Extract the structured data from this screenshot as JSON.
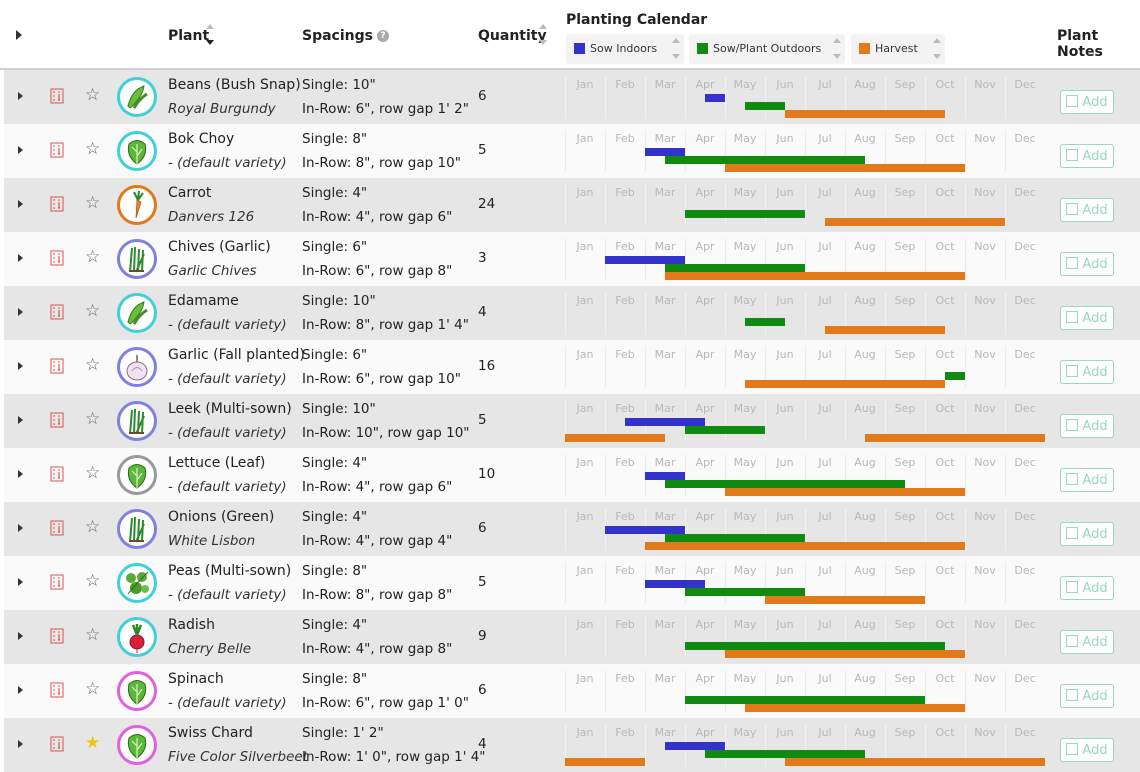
{
  "header": {
    "plant": "Plant",
    "spacings": "Spacings",
    "quantity": "Quantity",
    "calendar": "Planting Calendar",
    "notes": "Plant Notes",
    "help_icon_glyph": "?",
    "legend": [
      {
        "label": "Sow Indoors",
        "color": "#3333cc"
      },
      {
        "label": "Sow/Plant Outdoors",
        "color": "#108a10"
      },
      {
        "label": "Harvest",
        "color": "#e07a1a"
      }
    ]
  },
  "months": [
    "Jan",
    "Feb",
    "Mar",
    "Apr",
    "May",
    "Jun",
    "Jul",
    "Aug",
    "Sep",
    "Oct",
    "Nov",
    "Dec"
  ],
  "add_label": "Add",
  "rows": [
    {
      "name": "Beans (Bush Snap)",
      "variety": "Royal Burgundy",
      "single": "Single: 10\"",
      "inrow": "In-Row: 6\", row gap 1' 2\"",
      "qty": "6",
      "fav": false,
      "ring": "#3fd0d8",
      "icon": "bean",
      "indoor": [
        [
          3.5,
          4.0
        ]
      ],
      "outdoor": [
        [
          4.5,
          5.5
        ]
      ],
      "harvest": [
        [
          5.5,
          9.5
        ]
      ]
    },
    {
      "name": "Bok Choy",
      "variety": "- (default variety)",
      "single": "Single: 8\"",
      "inrow": "In-Row: 8\", row gap 10\"",
      "qty": "5",
      "fav": false,
      "ring": "#3fd0d8",
      "icon": "leafy",
      "indoor": [
        [
          2.0,
          3.0
        ]
      ],
      "outdoor": [
        [
          2.5,
          7.5
        ]
      ],
      "harvest": [
        [
          4.0,
          10.0
        ]
      ]
    },
    {
      "name": "Carrot",
      "variety": "Danvers 126",
      "single": "Single: 4\"",
      "inrow": "In-Row: 4\", row gap 6\"",
      "qty": "24",
      "fav": false,
      "ring": "#e07a1a",
      "icon": "carrot",
      "indoor": [],
      "outdoor": [
        [
          3.0,
          6.0
        ]
      ],
      "harvest": [
        [
          6.5,
          11.0
        ]
      ]
    },
    {
      "name": "Chives (Garlic)",
      "variety": "Garlic Chives",
      "single": "Single: 6\"",
      "inrow": "In-Row: 6\", row gap 8\"",
      "qty": "3",
      "fav": false,
      "ring": "#8080e0",
      "icon": "chive",
      "indoor": [
        [
          1.0,
          3.0
        ]
      ],
      "outdoor": [
        [
          2.5,
          6.0
        ]
      ],
      "harvest": [
        [
          2.5,
          10.0
        ]
      ]
    },
    {
      "name": "Edamame",
      "variety": "- (default variety)",
      "single": "Single: 10\"",
      "inrow": "In-Row: 8\", row gap 1' 4\"",
      "qty": "4",
      "fav": false,
      "ring": "#3fd0d8",
      "icon": "bean",
      "indoor": [],
      "outdoor": [
        [
          4.5,
          5.5
        ]
      ],
      "harvest": [
        [
          6.5,
          9.5
        ]
      ]
    },
    {
      "name": "Garlic (Fall planted)",
      "variety": "- (default variety)",
      "single": "Single: 6\"",
      "inrow": "In-Row: 6\", row gap 10\"",
      "qty": "16",
      "fav": false,
      "ring": "#8080e0",
      "icon": "garlic",
      "indoor": [],
      "outdoor": [
        [
          9.5,
          10.0
        ]
      ],
      "harvest": [
        [
          4.5,
          9.5
        ]
      ]
    },
    {
      "name": "Leek (Multi-sown)",
      "variety": "- (default variety)",
      "single": "Single: 10\"",
      "inrow": "In-Row: 10\", row gap 10\"",
      "qty": "5",
      "fav": false,
      "ring": "#8080e0",
      "icon": "chive",
      "indoor": [
        [
          1.5,
          3.5
        ]
      ],
      "outdoor": [
        [
          3.0,
          5.0
        ]
      ],
      "harvest": [
        [
          0.0,
          2.5
        ],
        [
          7.5,
          12.0
        ]
      ]
    },
    {
      "name": "Lettuce (Leaf)",
      "variety": "- (default variety)",
      "single": "Single: 4\"",
      "inrow": "In-Row: 4\", row gap 6\"",
      "qty": "10",
      "fav": false,
      "ring": "#999999",
      "icon": "leafy",
      "indoor": [
        [
          2.0,
          3.0
        ]
      ],
      "outdoor": [
        [
          2.5,
          8.5
        ]
      ],
      "harvest": [
        [
          4.0,
          10.0
        ]
      ]
    },
    {
      "name": "Onions (Green)",
      "variety": "White Lisbon",
      "single": "Single: 4\"",
      "inrow": "In-Row: 4\", row gap 4\"",
      "qty": "6",
      "fav": false,
      "ring": "#8080e0",
      "icon": "chive",
      "indoor": [
        [
          1.0,
          3.0
        ]
      ],
      "outdoor": [
        [
          2.5,
          6.0
        ]
      ],
      "harvest": [
        [
          2.0,
          10.0
        ]
      ]
    },
    {
      "name": "Peas (Multi-sown)",
      "variety": "- (default variety)",
      "single": "Single: 8\"",
      "inrow": "In-Row: 8\", row gap 8\"",
      "qty": "5",
      "fav": false,
      "ring": "#3fd0d8",
      "icon": "pea",
      "indoor": [
        [
          2.0,
          3.5
        ]
      ],
      "outdoor": [
        [
          3.0,
          6.0
        ]
      ],
      "harvest": [
        [
          5.0,
          9.0
        ]
      ]
    },
    {
      "name": "Radish",
      "variety": "Cherry Belle",
      "single": "Single: 4\"",
      "inrow": "In-Row: 4\", row gap 8\"",
      "qty": "9",
      "fav": false,
      "ring": "#3fd0d8",
      "icon": "radish",
      "indoor": [],
      "outdoor": [
        [
          3.0,
          9.5
        ]
      ],
      "harvest": [
        [
          4.0,
          10.0
        ]
      ]
    },
    {
      "name": "Spinach",
      "variety": "- (default variety)",
      "single": "Single: 8\"",
      "inrow": "In-Row: 6\", row gap 1' 0\"",
      "qty": "6",
      "fav": false,
      "ring": "#e060e0",
      "icon": "leafy",
      "indoor": [],
      "outdoor": [
        [
          3.0,
          9.0
        ]
      ],
      "harvest": [
        [
          4.5,
          10.0
        ]
      ]
    },
    {
      "name": "Swiss Chard",
      "variety": "Five Color Silverbeet",
      "single": "Single: 1' 2\"",
      "inrow": "In-Row: 1' 0\", row gap 1' 4\"",
      "qty": "4",
      "fav": true,
      "ring": "#e060e0",
      "icon": "leafy",
      "indoor": [
        [
          2.5,
          4.0
        ]
      ],
      "outdoor": [
        [
          3.5,
          7.5
        ]
      ],
      "harvest": [
        [
          0.0,
          2.0
        ],
        [
          5.5,
          12.0
        ]
      ]
    }
  ]
}
